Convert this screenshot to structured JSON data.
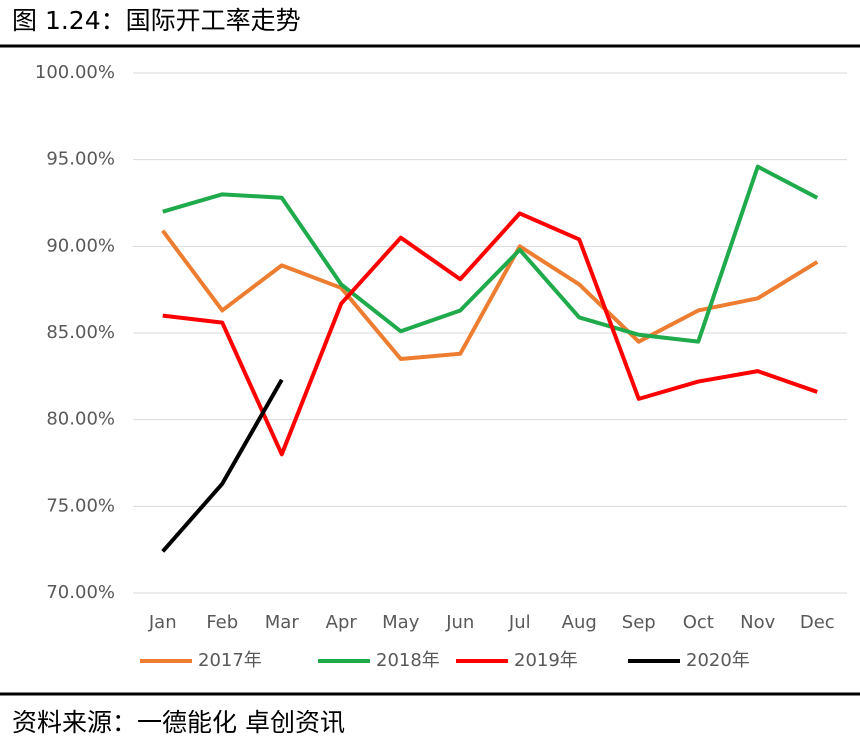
{
  "chart_data": {
    "type": "line",
    "title": "图 1.24：国际开工率走势",
    "source": "资料来源：一德能化 卓创资讯",
    "categories": [
      "Jan",
      "Feb",
      "Mar",
      "Apr",
      "May",
      "Jun",
      "Jul",
      "Aug",
      "Sep",
      "Oct",
      "Nov",
      "Dec"
    ],
    "series": [
      {
        "name": "2017年",
        "color": "#ed7d31",
        "values": [
          90.9,
          86.3,
          88.9,
          87.6,
          83.5,
          83.8,
          90.0,
          87.8,
          84.5,
          86.3,
          87.0,
          89.1
        ]
      },
      {
        "name": "2018年",
        "color": "#1faa4b",
        "values": [
          92.0,
          93.0,
          92.8,
          87.8,
          85.1,
          86.3,
          89.8,
          85.9,
          84.9,
          84.5,
          94.6,
          92.8
        ]
      },
      {
        "name": "2019年",
        "color": "#ff0000",
        "values": [
          86.0,
          85.6,
          78.0,
          86.7,
          90.5,
          88.1,
          91.9,
          90.4,
          81.2,
          82.2,
          82.8,
          81.6
        ]
      },
      {
        "name": "2020年",
        "color": "#000000",
        "values": [
          72.4,
          76.3,
          82.3,
          null,
          null,
          null,
          null,
          null,
          null,
          null,
          null,
          null
        ]
      }
    ],
    "ylim": [
      70,
      100
    ],
    "yticks": [
      {
        "value": 70,
        "label": "70.00%"
      },
      {
        "value": 75,
        "label": "75.00%"
      },
      {
        "value": 80,
        "label": "80.00%"
      },
      {
        "value": 85,
        "label": "85.00%"
      },
      {
        "value": 90,
        "label": "90.00%"
      },
      {
        "value": 95,
        "label": "95.00%"
      },
      {
        "value": 100,
        "label": "100.00%"
      }
    ],
    "grid": true,
    "legend": "bottom"
  }
}
